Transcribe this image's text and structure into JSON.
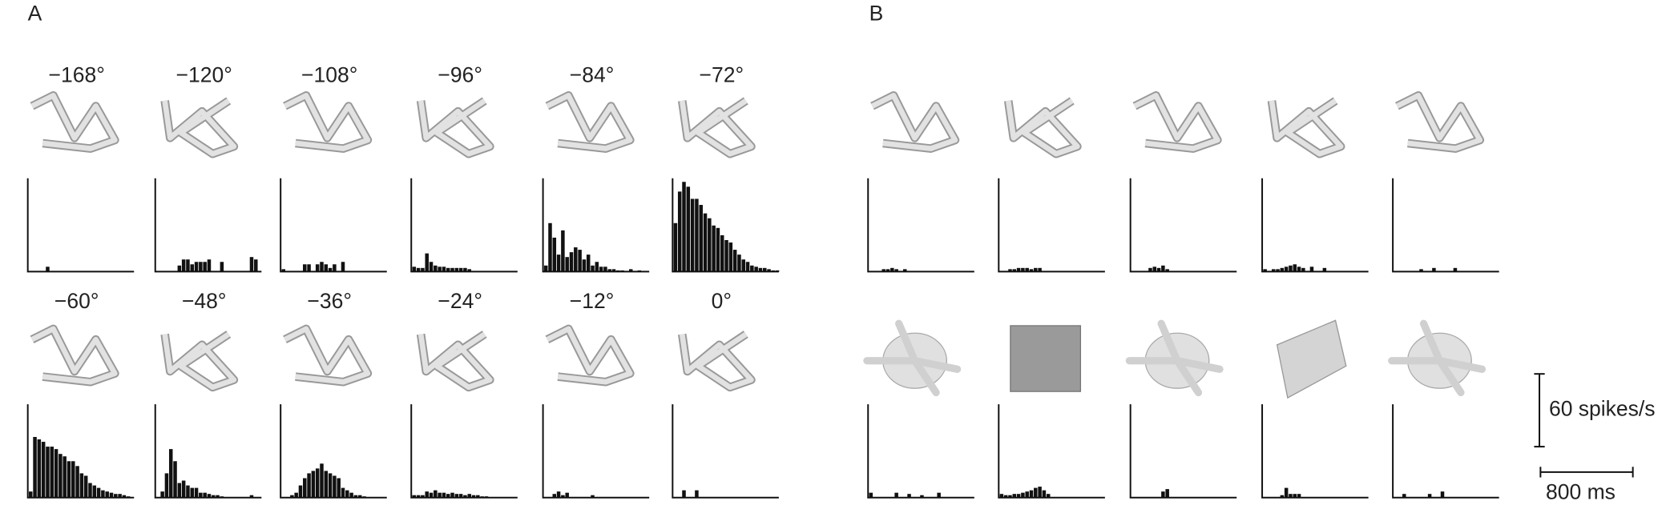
{
  "panel_labels": [
    "A",
    "B"
  ],
  "scale_bars": {
    "y": {
      "value": 60,
      "label": "60 spikes/s"
    },
    "x": {
      "value": 800,
      "label": "800 ms"
    }
  },
  "chart_data": [
    {
      "type": "bar",
      "title": "−168°",
      "color": "#111111",
      "xlim": [
        0,
        920
      ],
      "ylim": [
        0,
        77
      ],
      "values": [
        0,
        0,
        0,
        0,
        4,
        0,
        0,
        0,
        0,
        0,
        0,
        0,
        0,
        0,
        0,
        0,
        0,
        0,
        0,
        0,
        0,
        0,
        0,
        0,
        0
      ]
    },
    {
      "type": "bar",
      "title": "−120°",
      "color": "#111111",
      "xlim": [
        0,
        920
      ],
      "ylim": [
        0,
        77
      ],
      "values": [
        0,
        0,
        0,
        0,
        0,
        5,
        10,
        10,
        6,
        8,
        8,
        8,
        10,
        0,
        0,
        8,
        0,
        0,
        0,
        0,
        0,
        0,
        12,
        10,
        0
      ]
    },
    {
      "type": "bar",
      "title": "−108°",
      "color": "#111111",
      "xlim": [
        0,
        920
      ],
      "ylim": [
        0,
        77
      ],
      "values": [
        2,
        0,
        0,
        0,
        0,
        6,
        6,
        0,
        6,
        8,
        6,
        3,
        6,
        0,
        8,
        0,
        0,
        0,
        0,
        0,
        0,
        0,
        0,
        0,
        0
      ]
    },
    {
      "type": "bar",
      "title": "−96°",
      "color": "#111111",
      "xlim": [
        0,
        920
      ],
      "ylim": [
        0,
        77
      ],
      "values": [
        4,
        3,
        3,
        15,
        8,
        5,
        4,
        4,
        3,
        3,
        3,
        3,
        3,
        2,
        0,
        0,
        0,
        0,
        0,
        0,
        0,
        0,
        0,
        0,
        0
      ]
    },
    {
      "type": "bar",
      "title": "−84°",
      "color": "#111111",
      "xlim": [
        0,
        920
      ],
      "ylim": [
        0,
        77
      ],
      "values": [
        5,
        40,
        28,
        14,
        34,
        12,
        16,
        20,
        18,
        10,
        14,
        5,
        8,
        4,
        4,
        2,
        2,
        1,
        1,
        0,
        2,
        0,
        1,
        0,
        0
      ]
    },
    {
      "type": "bar",
      "title": "−72°",
      "color": "#111111",
      "xlim": [
        0,
        920
      ],
      "ylim": [
        0,
        77
      ],
      "values": [
        40,
        66,
        74,
        70,
        60,
        60,
        55,
        48,
        44,
        38,
        36,
        30,
        26,
        24,
        18,
        14,
        10,
        8,
        5,
        4,
        3,
        3,
        2,
        1,
        1
      ]
    },
    {
      "type": "bar",
      "title": "−60°",
      "color": "#111111",
      "xlim": [
        0,
        920
      ],
      "ylim": [
        0,
        77
      ],
      "values": [
        5,
        50,
        48,
        46,
        42,
        42,
        40,
        36,
        34,
        30,
        30,
        26,
        20,
        18,
        12,
        10,
        8,
        6,
        5,
        4,
        3,
        3,
        2,
        1,
        0
      ]
    },
    {
      "type": "bar",
      "title": "−48°",
      "color": "#111111",
      "xlim": [
        0,
        920
      ],
      "ylim": [
        0,
        77
      ],
      "values": [
        0,
        5,
        20,
        40,
        30,
        12,
        14,
        10,
        8,
        8,
        4,
        4,
        3,
        2,
        2,
        1,
        0,
        0,
        0,
        0,
        0,
        0,
        2,
        0,
        0
      ]
    },
    {
      "type": "bar",
      "title": "−36°",
      "color": "#111111",
      "xlim": [
        0,
        920
      ],
      "ylim": [
        0,
        77
      ],
      "values": [
        0,
        0,
        2,
        4,
        10,
        16,
        20,
        22,
        24,
        28,
        22,
        20,
        18,
        16,
        8,
        6,
        4,
        2,
        2,
        1,
        0,
        0,
        0,
        0,
        0
      ]
    },
    {
      "type": "bar",
      "title": "−24°",
      "color": "#111111",
      "xlim": [
        0,
        920
      ],
      "ylim": [
        0,
        77
      ],
      "values": [
        2,
        2,
        2,
        5,
        4,
        6,
        4,
        4,
        3,
        4,
        3,
        3,
        2,
        3,
        2,
        2,
        1,
        1,
        0,
        0,
        0,
        0,
        0,
        0,
        0
      ]
    },
    {
      "type": "bar",
      "title": "−12°",
      "color": "#111111",
      "xlim": [
        0,
        920
      ],
      "ylim": [
        0,
        77
      ],
      "values": [
        0,
        0,
        3,
        5,
        2,
        4,
        0,
        0,
        0,
        0,
        0,
        2,
        0,
        0,
        0,
        0,
        0,
        0,
        0,
        0,
        0,
        0,
        0,
        0,
        0
      ]
    },
    {
      "type": "bar",
      "title": "0°",
      "color": "#111111",
      "xlim": [
        0,
        920
      ],
      "ylim": [
        0,
        77
      ],
      "values": [
        0,
        0,
        6,
        0,
        0,
        6,
        0,
        0,
        0,
        0,
        0,
        0,
        0,
        0,
        0,
        0,
        0,
        0,
        0,
        0,
        0,
        0,
        0,
        0,
        0
      ]
    },
    {
      "type": "bar",
      "color": "#111111",
      "xlim": [
        0,
        920
      ],
      "ylim": [
        0,
        77
      ],
      "values": [
        0,
        0,
        0,
        2,
        2,
        3,
        2,
        0,
        2,
        0,
        0,
        0,
        0,
        0,
        0,
        0,
        0,
        0,
        0,
        0,
        0,
        0,
        0,
        0,
        0
      ]
    },
    {
      "type": "bar",
      "color": "#111111",
      "xlim": [
        0,
        920
      ],
      "ylim": [
        0,
        77
      ],
      "values": [
        0,
        0,
        2,
        2,
        3,
        3,
        3,
        2,
        3,
        3,
        0,
        0,
        0,
        0,
        0,
        0,
        0,
        0,
        0,
        0,
        0,
        0,
        0,
        0,
        0
      ]
    },
    {
      "type": "bar",
      "color": "#111111",
      "xlim": [
        0,
        920
      ],
      "ylim": [
        0,
        77
      ],
      "values": [
        0,
        0,
        0,
        0,
        3,
        4,
        3,
        5,
        2,
        0,
        0,
        0,
        0,
        0,
        0,
        0,
        0,
        0,
        0,
        0,
        0,
        0,
        0,
        0,
        0
      ]
    },
    {
      "type": "bar",
      "color": "#111111",
      "xlim": [
        0,
        920
      ],
      "ylim": [
        0,
        77
      ],
      "values": [
        2,
        0,
        2,
        2,
        3,
        4,
        5,
        6,
        4,
        3,
        0,
        4,
        0,
        0,
        3,
        0,
        0,
        0,
        0,
        0,
        0,
        0,
        0,
        0,
        0
      ]
    },
    {
      "type": "bar",
      "color": "#111111",
      "xlim": [
        0,
        920
      ],
      "ylim": [
        0,
        77
      ],
      "values": [
        0,
        0,
        0,
        0,
        0,
        0,
        2,
        0,
        0,
        3,
        0,
        0,
        0,
        0,
        3,
        0,
        0,
        0,
        0,
        0,
        0,
        0,
        0,
        0,
        0
      ]
    },
    {
      "type": "bar",
      "color": "#111111",
      "xlim": [
        0,
        920
      ],
      "ylim": [
        0,
        77
      ],
      "values": [
        4,
        0,
        0,
        0,
        0,
        0,
        4,
        0,
        0,
        3,
        0,
        0,
        2,
        0,
        0,
        0,
        4,
        0,
        0,
        0,
        0,
        0,
        0,
        0,
        0
      ]
    },
    {
      "type": "bar",
      "color": "#111111",
      "xlim": [
        0,
        920
      ],
      "ylim": [
        0,
        77
      ],
      "values": [
        3,
        2,
        2,
        3,
        3,
        4,
        5,
        6,
        8,
        9,
        6,
        3,
        0,
        0,
        0,
        0,
        0,
        0,
        0,
        0,
        0,
        0,
        0,
        0,
        0
      ]
    },
    {
      "type": "bar",
      "color": "#111111",
      "xlim": [
        0,
        920
      ],
      "ylim": [
        0,
        77
      ],
      "values": [
        0,
        0,
        0,
        0,
        0,
        0,
        0,
        5,
        7,
        0,
        0,
        0,
        0,
        0,
        0,
        0,
        0,
        0,
        0,
        0,
        0,
        0,
        0,
        0,
        0
      ]
    },
    {
      "type": "bar",
      "color": "#111111",
      "xlim": [
        0,
        920
      ],
      "ylim": [
        0,
        77
      ],
      "values": [
        0,
        0,
        0,
        0,
        2,
        8,
        3,
        3,
        3,
        0,
        0,
        0,
        0,
        0,
        0,
        0,
        0,
        0,
        0,
        0,
        0,
        0,
        0,
        0,
        0
      ]
    },
    {
      "type": "bar",
      "color": "#111111",
      "xlim": [
        0,
        920
      ],
      "ylim": [
        0,
        77
      ],
      "values": [
        0,
        0,
        3,
        0,
        0,
        0,
        0,
        0,
        3,
        0,
        0,
        5,
        0,
        0,
        0,
        0,
        0,
        0,
        0,
        0,
        0,
        0,
        0,
        0,
        0
      ]
    }
  ]
}
